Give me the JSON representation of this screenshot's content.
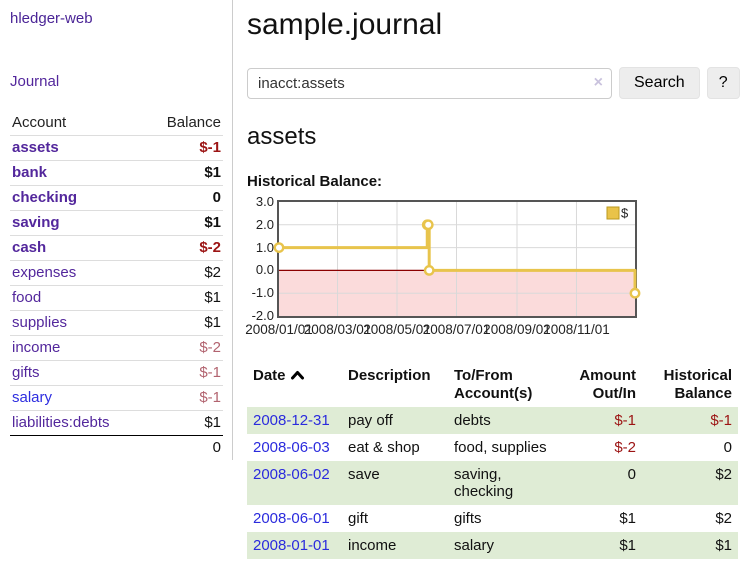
{
  "app": {
    "brand": "hledger-web"
  },
  "sidebar": {
    "journal_link": "Journal",
    "headers": {
      "account": "Account",
      "balance": "Balance"
    },
    "accounts": [
      {
        "name": "assets",
        "balance": "$-1"
      },
      {
        "name": "bank",
        "balance": "$1"
      },
      {
        "name": "checking",
        "balance": "0"
      },
      {
        "name": "saving",
        "balance": "$1"
      },
      {
        "name": "cash",
        "balance": "$-2"
      },
      {
        "name": "expenses",
        "balance": "$2"
      },
      {
        "name": "food",
        "balance": "$1"
      },
      {
        "name": "supplies",
        "balance": "$1"
      },
      {
        "name": "income",
        "balance": "$-2"
      },
      {
        "name": "gifts",
        "balance": "$-1"
      },
      {
        "name": "salary",
        "balance": "$-1"
      },
      {
        "name": "liabilities:debts",
        "balance": "$1"
      }
    ],
    "total": "0"
  },
  "main": {
    "title": "sample.journal",
    "search": {
      "value": "inacct:assets",
      "clear_icon": "×",
      "search_button": "Search",
      "help_button": "?"
    },
    "account_heading": "assets",
    "section_label": "Historical Balance:"
  },
  "chart_data": {
    "type": "line",
    "step": true,
    "title": "Historical Balance:",
    "x_range": [
      "2008-01-01",
      "2008-12-31"
    ],
    "ylim": [
      -2,
      3
    ],
    "y_ticks": [
      "3.0",
      "2.0",
      "1.0",
      "0.0",
      "-1.0",
      "-2.0"
    ],
    "x_ticks": [
      "2008/01/01",
      "2008/03/01",
      "2008/05/01",
      "2008/07/01",
      "2008/09/01",
      "2008/11/01"
    ],
    "grid": true,
    "legend_position": "top-right",
    "legend": [
      {
        "label": "$",
        "color": "#e9c349"
      }
    ],
    "zero_line_color": "#8b0000",
    "negative_region_color": "#fbdbdb",
    "series": [
      {
        "name": "$",
        "color": "#e8c44c",
        "points": [
          {
            "date": "2008-01-01",
            "value": 1
          },
          {
            "date": "2008-06-01",
            "value": 2
          },
          {
            "date": "2008-06-02",
            "value": 2
          },
          {
            "date": "2008-06-03",
            "value": 0
          },
          {
            "date": "2008-12-31",
            "value": -1
          }
        ]
      }
    ]
  },
  "register": {
    "headers": {
      "date": "Date",
      "description": "Description",
      "accounts": "To/From Account(s)",
      "amount": "Amount Out/In",
      "balance": "Historical Balance"
    },
    "rows": [
      {
        "date": "2008-12-31",
        "description": "pay off",
        "accounts": "debts",
        "amount": "$-1",
        "balance": "$-1"
      },
      {
        "date": "2008-06-03",
        "description": "eat & shop",
        "accounts": "food, supplies",
        "amount": "$-2",
        "balance": "0"
      },
      {
        "date": "2008-06-02",
        "description": "save",
        "accounts": "saving, checking",
        "amount": "0",
        "balance": "$2"
      },
      {
        "date": "2008-06-01",
        "description": "gift",
        "accounts": "gifts",
        "amount": "$1",
        "balance": "$2"
      },
      {
        "date": "2008-01-01",
        "description": "income",
        "accounts": "salary",
        "amount": "$1",
        "balance": "$1"
      }
    ]
  }
}
